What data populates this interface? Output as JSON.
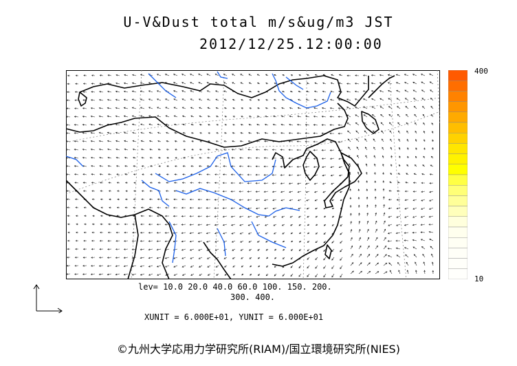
{
  "header": {
    "title": "U-V&Dust total m/s&ug/m3 JST",
    "datetime": "2012/12/25.12:00:00"
  },
  "colorbar": {
    "max_label": "400",
    "min_label": "10",
    "colors": [
      "#ff5a00",
      "#ff6e00",
      "#ff8200",
      "#ff9600",
      "#ffaa00",
      "#ffbe00",
      "#ffd200",
      "#ffe600",
      "#fff200",
      "#ffff00",
      "#ffff44",
      "#ffff77",
      "#ffff99",
      "#ffffbb",
      "#ffffdd",
      "#ffffee",
      "#fffff4",
      "#fffff8",
      "#fffffa",
      "#fffffc"
    ]
  },
  "legend": {
    "lev_line1": "lev= 10.0 20.0 40.0 60.0 100. 150. 200.",
    "lev_line2": "300. 400.",
    "units": "XUNIT = 6.000E+01, YUNIT = 6.000E+01"
  },
  "map": {
    "coast_color": "#000000",
    "river_color": "#1a5fe8",
    "grid_color": "#777777"
  },
  "footer": {
    "credit": "©九州大学応用力学研究所(RIAM)/国立環境研究所(NIES)"
  }
}
